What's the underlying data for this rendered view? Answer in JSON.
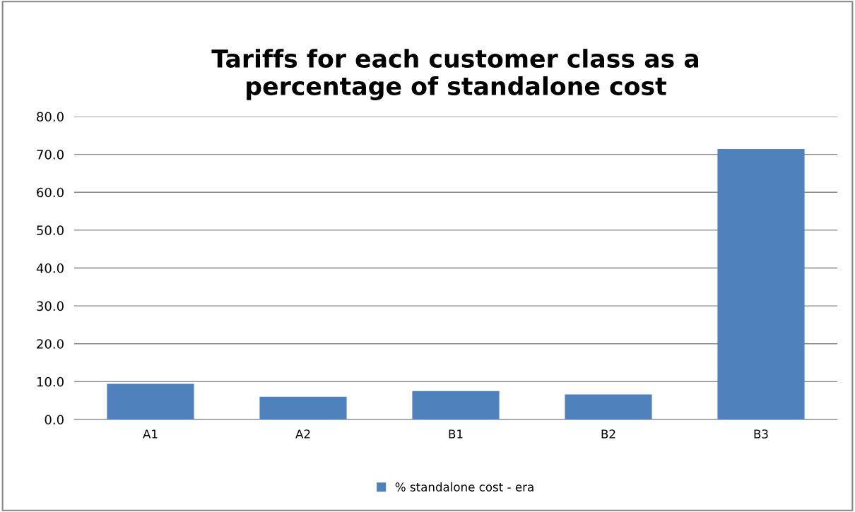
{
  "chart_data": {
    "type": "bar",
    "title": "Tariffs for each customer class as a\npercentage of standalone cost",
    "categories": [
      "A1",
      "A2",
      "B1",
      "B2",
      "B3"
    ],
    "series": [
      {
        "name": "% standalone cost - era",
        "color": "#4f81bd",
        "values": [
          9.4,
          6.0,
          7.5,
          6.6,
          71.4
        ]
      }
    ],
    "ylim": [
      0,
      80
    ],
    "yticks": [
      {
        "value": 0,
        "label": "0.0"
      },
      {
        "value": 10,
        "label": "10.0"
      },
      {
        "value": 20,
        "label": "20.0"
      },
      {
        "value": 30,
        "label": "30.0"
      },
      {
        "value": 40,
        "label": "40.0"
      },
      {
        "value": 50,
        "label": "50.0"
      },
      {
        "value": 60,
        "label": "60.0"
      },
      {
        "value": 70,
        "label": "70.0"
      },
      {
        "value": 80,
        "label": "80.0"
      }
    ],
    "grid": "y",
    "legend": "bottom"
  }
}
